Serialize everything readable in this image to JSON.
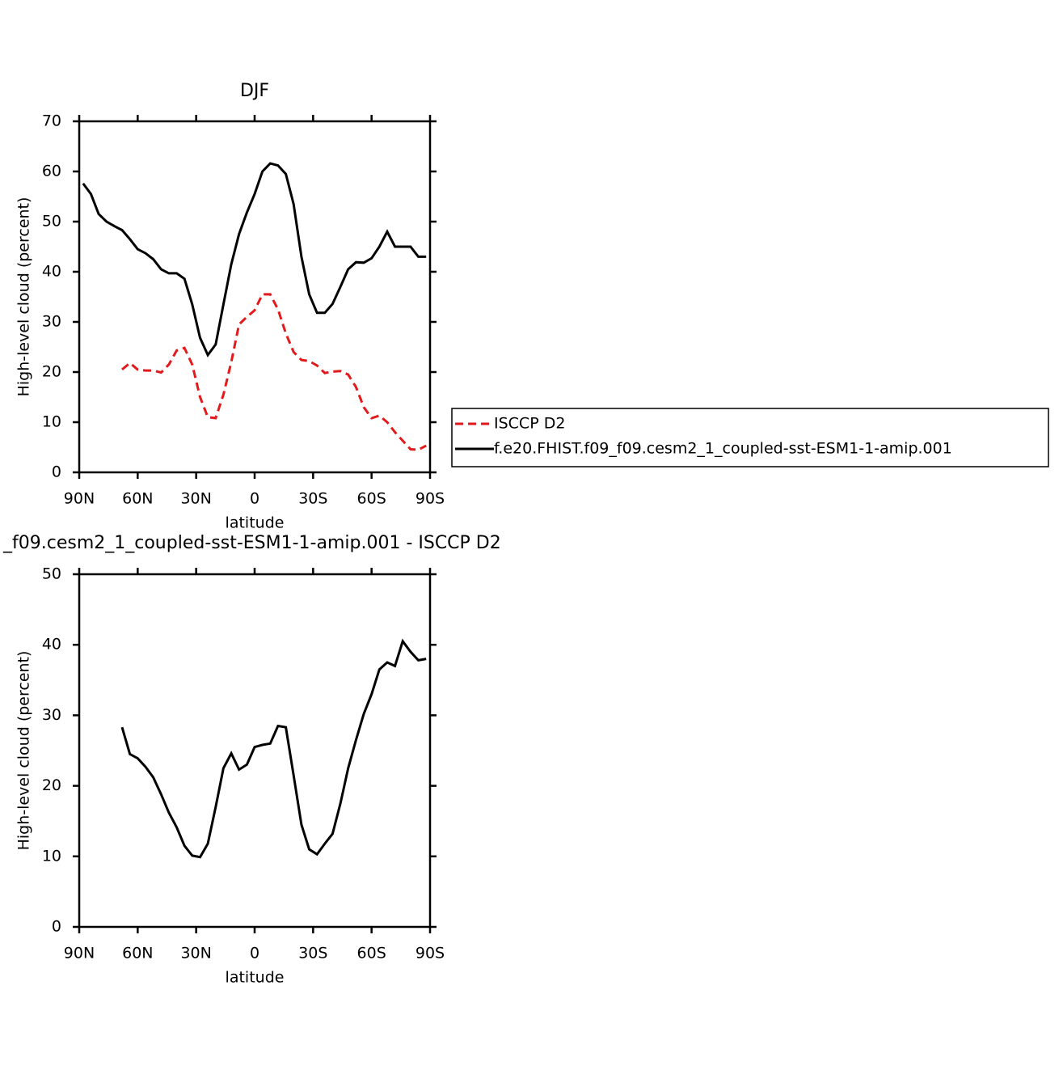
{
  "chart_data": [
    {
      "type": "line",
      "title": "DJF",
      "xlabel": "latitude",
      "ylabel": "High-level cloud (percent)",
      "x": [
        88,
        84,
        80,
        76,
        72,
        68,
        64,
        60,
        56,
        52,
        48,
        44,
        40,
        36,
        32,
        28,
        24,
        20,
        16,
        12,
        8,
        4,
        0,
        -4,
        -8,
        -12,
        -16,
        -20,
        -24,
        -28,
        -32,
        -36,
        -40,
        -44,
        -48,
        -52,
        -56,
        -60,
        -64,
        -68,
        -72,
        -76,
        -80,
        -84,
        -88
      ],
      "series": [
        {
          "name": "ISCCP D2",
          "color": "#e31a1c",
          "line_style": "dashed",
          "values": [
            null,
            null,
            null,
            null,
            null,
            20.5,
            21.8,
            20.5,
            20.3,
            20.3,
            19.9,
            21.5,
            24.3,
            24.8,
            21.5,
            15,
            11,
            10.8,
            15.5,
            22,
            29.5,
            31,
            32.3,
            35.5,
            35.5,
            32.5,
            27.7,
            24,
            22.4,
            22.2,
            21.3,
            19.8,
            20.1,
            20.2,
            19.5,
            17,
            13,
            10.8,
            11.3,
            10,
            8,
            6.3,
            4.6,
            4.5,
            5.3
          ]
        },
        {
          "name": "f.e20.FHIST.f09_f09.cesm2_1_coupled-sst-ESM1-1-amip.001",
          "color": "#000000",
          "line_style": "solid",
          "values": [
            57.6,
            55.5,
            51.5,
            50,
            49.1,
            48.3,
            46.5,
            44.5,
            43.7,
            42.5,
            40.5,
            39.7,
            39.7,
            38.6,
            33.5,
            26.8,
            23.4,
            25.5,
            33.5,
            41.5,
            47.5,
            51.8,
            55.5,
            60,
            61.6,
            61.2,
            59.5,
            53.5,
            43,
            35.5,
            31.8,
            31.8,
            33.6,
            37,
            40.5,
            41.9,
            41.8,
            42.7,
            45,
            48,
            45,
            45,
            45,
            43,
            43
          ]
        }
      ],
      "xlim": [
        90,
        -90
      ],
      "xticks": [
        {
          "value": 90,
          "label": "90N"
        },
        {
          "value": 60,
          "label": "60N"
        },
        {
          "value": 30,
          "label": "30N"
        },
        0,
        {
          "value": -30,
          "label": "30S"
        },
        {
          "value": -60,
          "label": "60S"
        },
        {
          "value": -90,
          "label": "90S"
        }
      ],
      "ylim": [
        0,
        70
      ],
      "yticks": [
        0,
        10,
        20,
        30,
        40,
        50,
        60,
        70
      ],
      "legend": "right",
      "grid": false
    },
    {
      "type": "line",
      "title": "_f09.cesm2_1_coupled-sst-ESM1-1-amip.001 - ISCCP D2",
      "xlabel": "latitude",
      "ylabel": "High-level cloud (percent)",
      "x": [
        88,
        84,
        80,
        76,
        72,
        68,
        64,
        60,
        56,
        52,
        48,
        44,
        40,
        36,
        32,
        28,
        24,
        20,
        16,
        12,
        8,
        4,
        0,
        -4,
        -8,
        -12,
        -16,
        -20,
        -24,
        -28,
        -32,
        -36,
        -40,
        -44,
        -48,
        -52,
        -56,
        -60,
        -64,
        -68,
        -72,
        -76,
        -80,
        -84,
        -88
      ],
      "series": [
        {
          "color": "#000000",
          "line_style": "solid",
          "values": [
            null,
            null,
            null,
            null,
            null,
            28.3,
            24.5,
            23.9,
            22.7,
            21.2,
            18.8,
            16.2,
            14.1,
            11.5,
            10.1,
            9.9,
            11.8,
            17,
            22.5,
            24.6,
            22.3,
            23,
            25.5,
            25.8,
            26,
            28.5,
            28.3,
            21.5,
            14.5,
            11,
            10.3,
            11.8,
            13.2,
            17.5,
            22.5,
            26.5,
            30.2,
            33,
            36.5,
            37.5,
            37,
            40.5,
            39,
            37.8,
            38
          ]
        }
      ],
      "xlim": [
        90,
        -90
      ],
      "xticks": [
        {
          "value": 90,
          "label": "90N"
        },
        {
          "value": 60,
          "label": "60N"
        },
        {
          "value": 30,
          "label": "30N"
        },
        0,
        {
          "value": -30,
          "label": "30S"
        },
        {
          "value": -60,
          "label": "60S"
        },
        {
          "value": -90,
          "label": "90S"
        }
      ],
      "ylim": [
        0,
        50
      ],
      "yticks": [
        0,
        10,
        20,
        30,
        40,
        50
      ],
      "grid": false
    }
  ]
}
